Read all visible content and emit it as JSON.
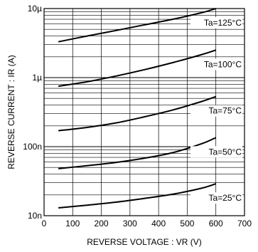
{
  "chart_data": {
    "type": "line",
    "title": "",
    "xlabel": "REVERSE  VOLTAGE : VR (V)",
    "ylabel": "REVERSE  CURRENT : IR (A)",
    "xlim": [
      0,
      700
    ],
    "ylim": [
      1e-08,
      1e-05
    ],
    "yscale": "log",
    "grid": true,
    "x_ticks": [
      0,
      100,
      200,
      300,
      400,
      500,
      600,
      700
    ],
    "x_tick_labels": [
      "0",
      "100",
      "200",
      "300",
      "400",
      "500",
      "600",
      "700"
    ],
    "y_ticks": [
      1e-08,
      1e-07,
      1e-06,
      1e-05
    ],
    "y_tick_labels": [
      "10n",
      "100n",
      "1µ",
      "10µ"
    ],
    "series": [
      {
        "name": "Ta=125°C",
        "x": [
          50,
          150,
          250,
          350,
          450,
          550,
          600
        ],
        "y": [
          3.3e-06,
          4e-06,
          4.8e-06,
          5.8e-06,
          7e-06,
          8.7e-06,
          1e-05
        ]
      },
      {
        "name": "Ta=100°C",
        "x": [
          50,
          150,
          250,
          350,
          450,
          550,
          600
        ],
        "y": [
          7.5e-07,
          8.7e-07,
          1.05e-06,
          1.3e-06,
          1.65e-06,
          2.15e-06,
          2.5e-06
        ]
      },
      {
        "name": "Ta=75°C",
        "x": [
          50,
          150,
          250,
          350,
          450,
          550,
          600
        ],
        "y": [
          1.7e-07,
          1.9e-07,
          2.2e-07,
          2.7e-07,
          3.4e-07,
          4.5e-07,
          5.3e-07
        ]
      },
      {
        "name": "Ta=50°C",
        "x": [
          50,
          150,
          250,
          350,
          450,
          550,
          600
        ],
        "y": [
          4.8e-08,
          5.3e-08,
          5.9e-08,
          6.8e-08,
          8.2e-08,
          1.1e-07,
          1.35e-07
        ]
      },
      {
        "name": "Ta=25°C",
        "x": [
          50,
          150,
          250,
          350,
          450,
          550,
          600
        ],
        "y": [
          1.3e-08,
          1.42e-08,
          1.57e-08,
          1.78e-08,
          2.05e-08,
          2.5e-08,
          2.9e-08
        ]
      }
    ]
  }
}
